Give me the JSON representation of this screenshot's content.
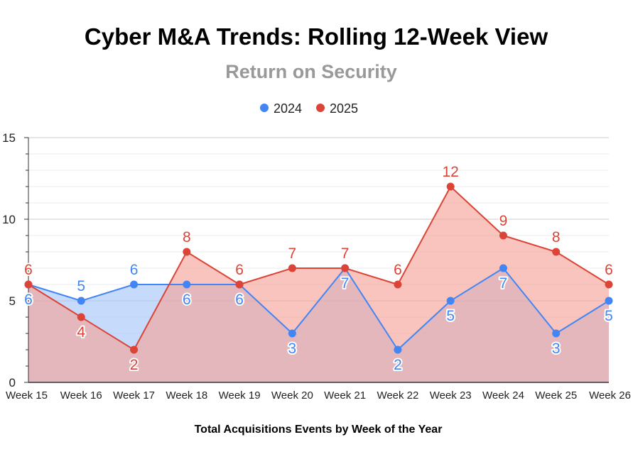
{
  "chart_data": {
    "type": "area",
    "title": "Cyber M&A Trends: Rolling 12-Week View",
    "subtitle": "Return on Security",
    "xlabel": "Total Acquisitions Events by Week of the Year",
    "ylabel": "",
    "categories": [
      "Week 15",
      "Week 16",
      "Week 17",
      "Week 18",
      "Week 19",
      "Week 20",
      "Week 21",
      "Week 22",
      "Week 23",
      "Week 24",
      "Week 25",
      "Week 26"
    ],
    "series": [
      {
        "name": "2024",
        "color": "#4285f4",
        "values": [
          6,
          5,
          6,
          6,
          6,
          3,
          7,
          2,
          5,
          7,
          3,
          5
        ]
      },
      {
        "name": "2025",
        "color": "#db4437",
        "values": [
          6,
          4,
          2,
          8,
          6,
          7,
          7,
          6,
          12,
          9,
          8,
          6
        ]
      }
    ],
    "ylim": [
      0,
      15
    ],
    "yticks": [
      0,
      5,
      10,
      15
    ],
    "grid": true,
    "legend_position": "top-center",
    "data_labels": true
  }
}
